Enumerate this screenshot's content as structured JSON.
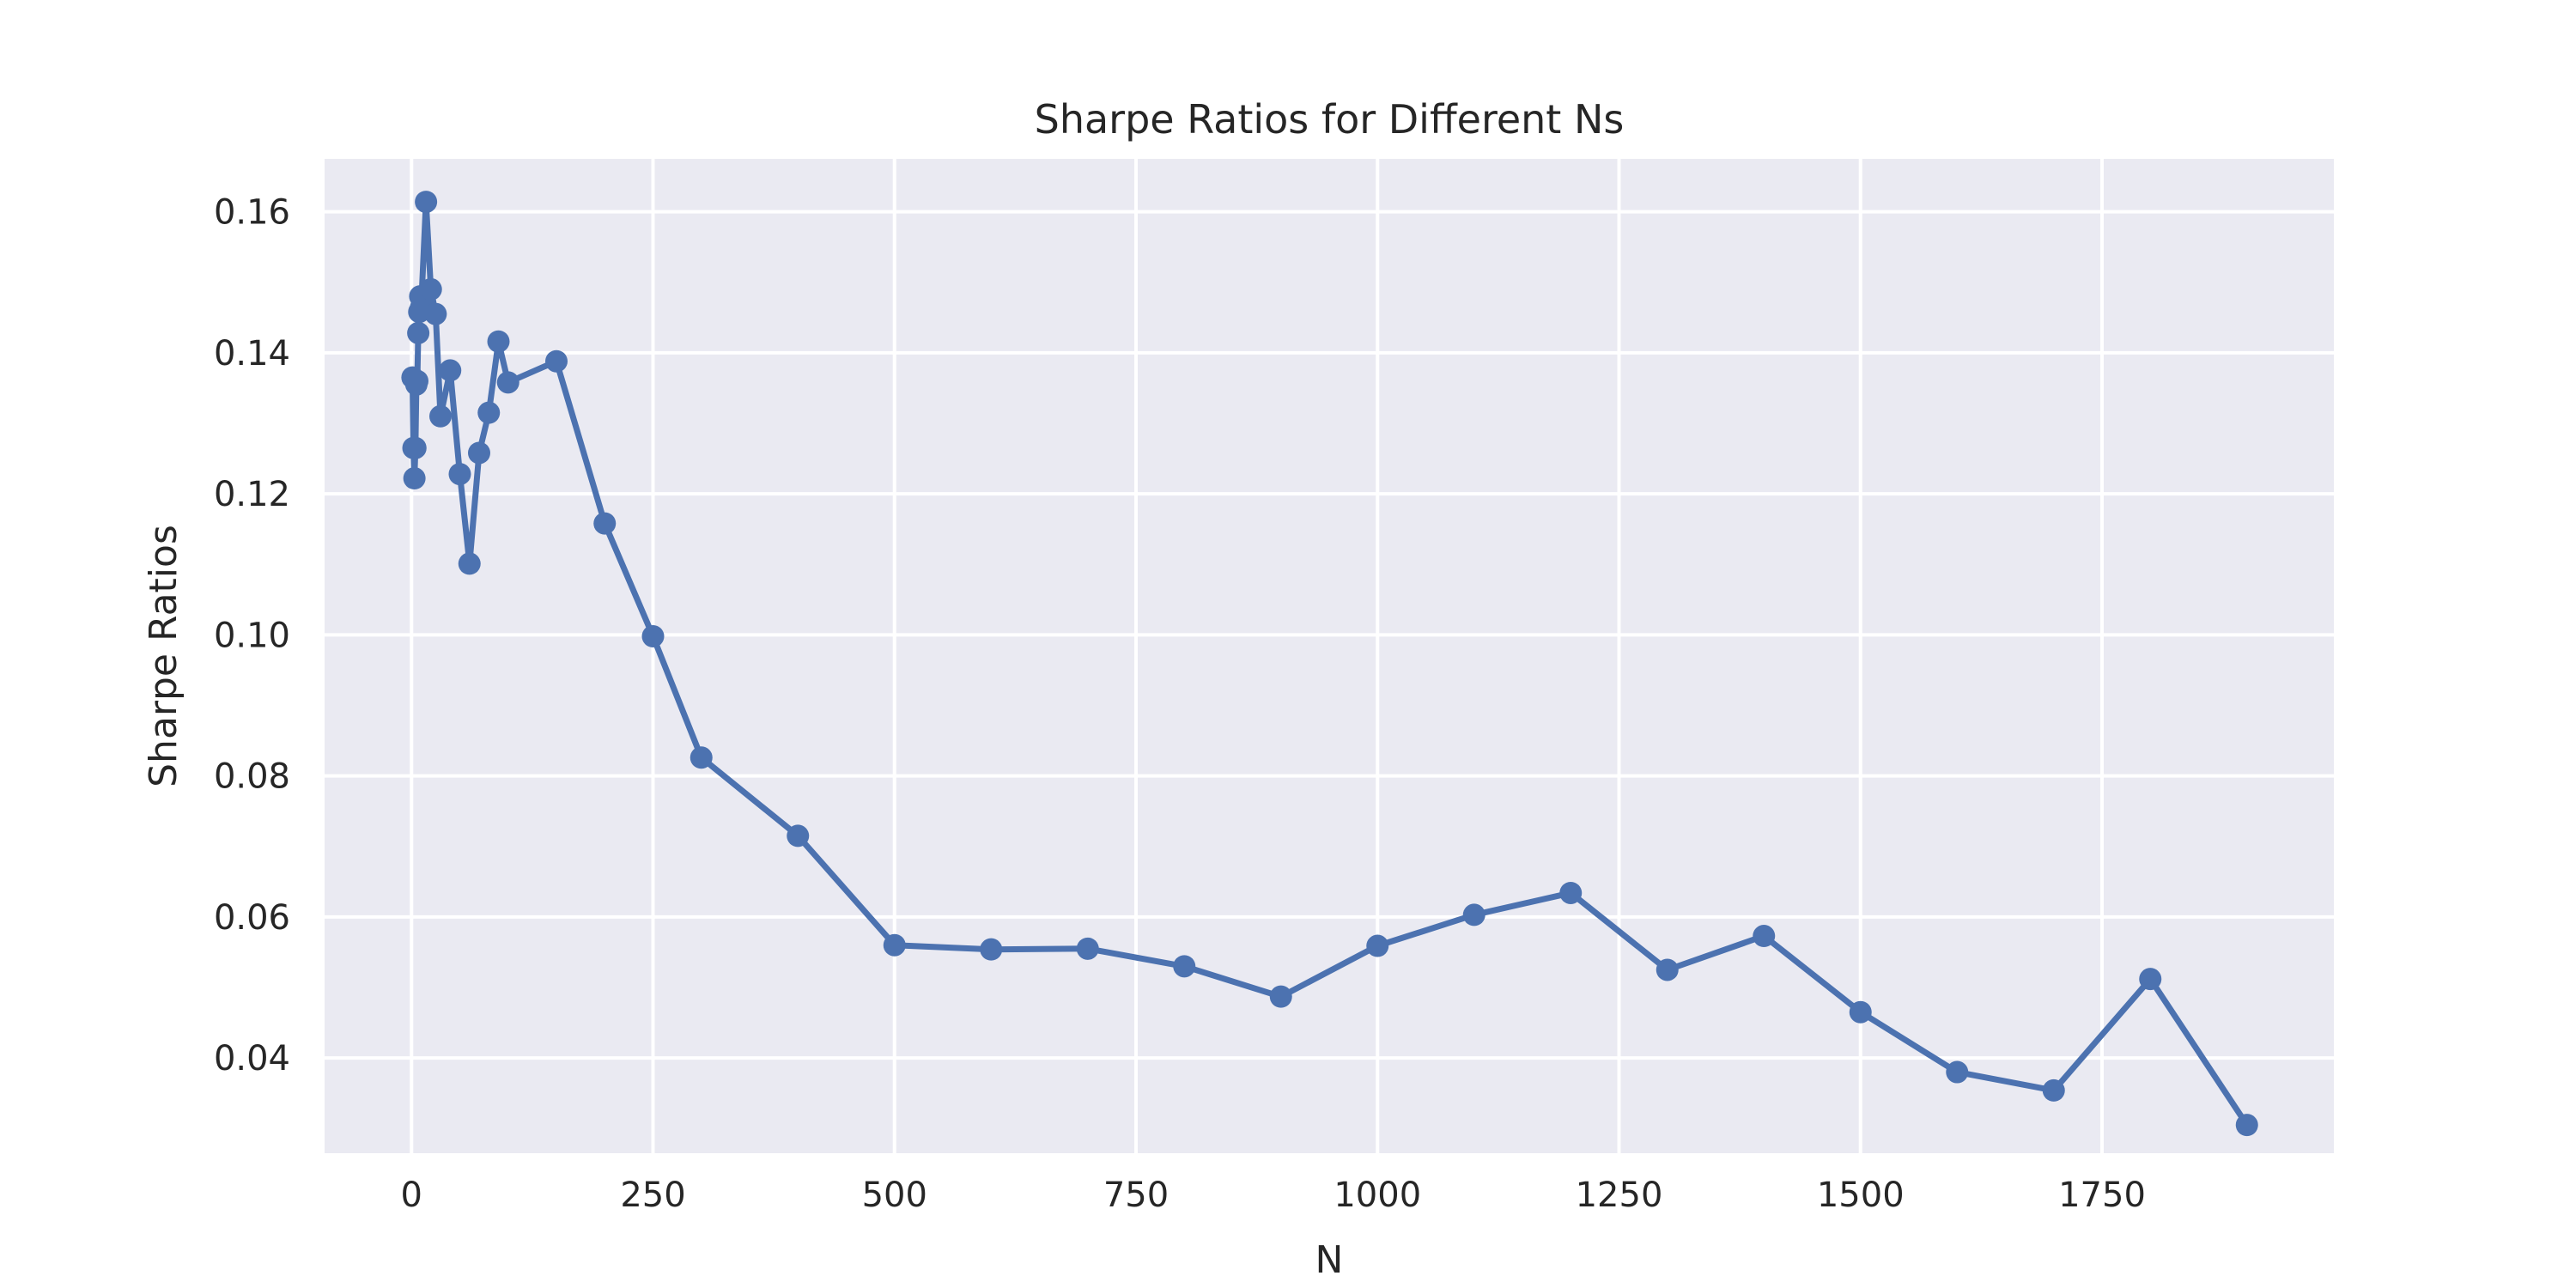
{
  "chart_data": {
    "type": "line",
    "title": "Sharpe Ratios for Different Ns",
    "xlabel": "N",
    "ylabel": "Sharpe Ratios",
    "xlim": [
      -90,
      1990
    ],
    "ylim": [
      0.0265,
      0.1675
    ],
    "grid": true,
    "legend": "none",
    "x_ticks": [
      0,
      250,
      500,
      750,
      1000,
      1250,
      1500,
      1750
    ],
    "x_tick_labels": [
      "0",
      "250",
      "500",
      "750",
      "1000",
      "1250",
      "1500",
      "1750"
    ],
    "y_ticks": [
      0.04,
      0.06,
      0.08,
      0.1,
      0.12,
      0.14,
      0.16
    ],
    "y_tick_labels": [
      "0.04",
      "0.06",
      "0.08",
      "0.10",
      "0.12",
      "0.14",
      "0.16"
    ],
    "series": [
      {
        "color": "#4c72b0",
        "marker": "circle",
        "x": [
          1,
          2,
          3,
          4,
          5,
          6,
          7,
          8,
          9,
          10,
          15,
          20,
          25,
          30,
          40,
          50,
          60,
          70,
          80,
          90,
          100,
          150,
          200,
          250,
          300,
          400,
          500,
          600,
          700,
          800,
          900,
          1000,
          1100,
          1200,
          1300,
          1400,
          1500,
          1600,
          1700,
          1800,
          1900
        ],
        "y": [
          0.1365,
          0.1265,
          0.1222,
          0.1265,
          0.1355,
          0.136,
          0.1428,
          0.1458,
          0.148,
          0.1465,
          0.1614,
          0.149,
          0.1455,
          0.131,
          0.1375,
          0.1228,
          0.1101,
          0.1258,
          0.1315,
          0.1416,
          0.1358,
          0.1388,
          0.1158,
          0.0998,
          0.0826,
          0.0715,
          0.056,
          0.0554,
          0.0555,
          0.053,
          0.0487,
          0.0559,
          0.0603,
          0.0634,
          0.0525,
          0.0573,
          0.0465,
          0.038,
          0.0354,
          0.0512,
          0.0305
        ]
      }
    ]
  }
}
